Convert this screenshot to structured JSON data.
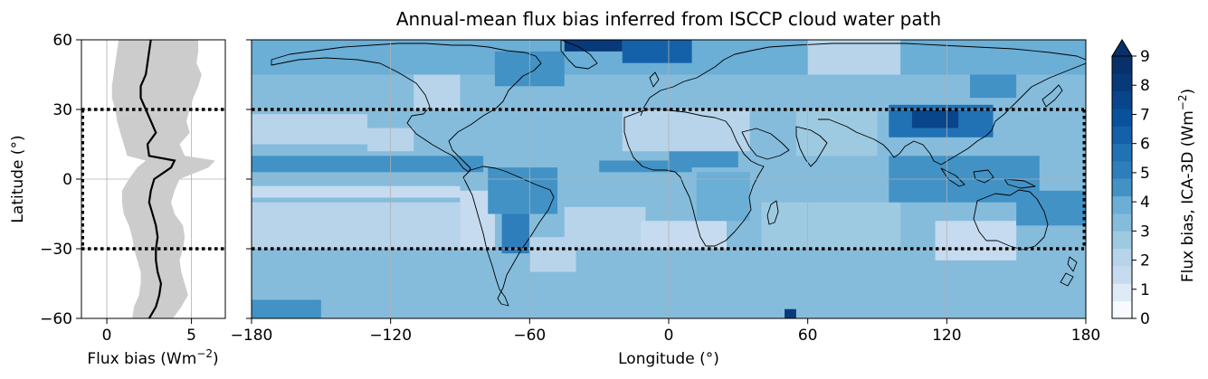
{
  "colors": {
    "profile_fill": "#cccccc",
    "profile_line": "#000000",
    "coast": "#000000",
    "grid": "#b0b0b0",
    "colormap": [
      "#f7fbff",
      "#deebf7",
      "#c6dbef",
      "#b7d4ea",
      "#9ecae1",
      "#85bcdc",
      "#6baed6",
      "#4292c6",
      "#2f7ebc",
      "#2171b5",
      "#1561a9",
      "#08519c",
      "#08458a",
      "#083a7a",
      "#08306b"
    ]
  },
  "chart_data": [
    {
      "type": "area",
      "name": "zonal-profile",
      "xlabel": "Flux bias (Wm",
      "xlabel_sup": "−2",
      "xlabel_end": ")",
      "ylabel": "Latitude (°)",
      "xlim": [
        -1.5,
        7
      ],
      "ylim": [
        -60,
        60
      ],
      "xticks": [
        0,
        5
      ],
      "xtick_labels": [
        "0",
        "5"
      ],
      "yticks": [
        -60,
        -30,
        0,
        30,
        60
      ],
      "ytick_labels": [
        "−60",
        "−30",
        "0",
        "30",
        "60"
      ],
      "grid": true,
      "latitude": [
        -60,
        -55,
        -50,
        -45,
        -40,
        -35,
        -30,
        -25,
        -20,
        -15,
        -10,
        -5,
        0,
        5,
        8,
        10,
        15,
        20,
        25,
        30,
        35,
        40,
        45,
        50,
        55,
        60
      ],
      "mean": [
        2.5,
        2.9,
        3.1,
        3.2,
        3.0,
        2.9,
        2.9,
        3.0,
        2.9,
        2.7,
        2.5,
        2.6,
        2.8,
        3.8,
        4.0,
        2.5,
        2.4,
        2.9,
        2.6,
        2.3,
        2.0,
        2.0,
        2.3,
        2.4,
        2.5,
        2.6
      ],
      "lower": [
        1.5,
        1.6,
        1.9,
        2.0,
        2.0,
        1.8,
        1.6,
        1.5,
        1.3,
        1.0,
        0.9,
        0.9,
        1.3,
        1.8,
        2.3,
        1.2,
        1.0,
        0.8,
        0.6,
        0.5,
        0.3,
        0.3,
        0.4,
        0.5,
        0.6,
        0.7
      ],
      "upper": [
        3.9,
        4.4,
        4.8,
        4.6,
        4.4,
        4.3,
        4.5,
        4.6,
        4.5,
        4.0,
        3.8,
        4.0,
        4.3,
        6.0,
        6.4,
        4.6,
        4.3,
        4.9,
        4.7,
        4.9,
        5.1,
        5.4,
        5.6,
        5.3,
        5.4,
        5.4
      ],
      "tropics_bounds": [
        -30,
        30
      ]
    },
    {
      "type": "heatmap",
      "name": "flux-bias-map",
      "title": "Annual-mean flux bias inferred from ISCCP cloud water path",
      "xlabel": "Longitude (°)",
      "xlim": [
        -180,
        180
      ],
      "ylim": [
        -60,
        60
      ],
      "xticks": [
        -180,
        -120,
        -60,
        0,
        60,
        120,
        180
      ],
      "xtick_labels": [
        "−180",
        "−120",
        "−60",
        "0",
        "60",
        "120",
        "180"
      ],
      "grid": true,
      "tropics_bounds": [
        -30,
        30
      ],
      "colorbar": {
        "label": "Flux bias, ICA-3D (Wm",
        "label_sup": "−2",
        "label_end": ")",
        "range": [
          0,
          9
        ],
        "ticks": [
          0,
          1,
          2,
          3,
          4,
          5,
          6,
          7,
          8,
          9
        ],
        "tick_labels": [
          "0",
          "1",
          "2",
          "3",
          "4",
          "5",
          "6",
          "7",
          "8",
          "9"
        ],
        "extend": "max"
      },
      "background_value": 3.0,
      "regions": [
        {
          "lon": [
            -180,
            180
          ],
          "lat": [
            -60,
            -45
          ],
          "value": 3.5
        },
        {
          "lon": [
            -180,
            180
          ],
          "lat": [
            -45,
            -30
          ],
          "value": 3.0
        },
        {
          "lon": [
            -180,
            -90
          ],
          "lat": [
            -30,
            -10
          ],
          "value": 2.2
        },
        {
          "lon": [
            -180,
            180
          ],
          "lat": [
            30,
            45
          ],
          "value": 3.5
        },
        {
          "lon": [
            -180,
            180
          ],
          "lat": [
            45,
            60
          ],
          "value": 3.6
        },
        {
          "lon": [
            -180,
            -90
          ],
          "lat": [
            -8,
            -3
          ],
          "value": 1.5
        },
        {
          "lon": [
            -180,
            -80
          ],
          "lat": [
            3,
            10
          ],
          "value": 4.6
        },
        {
          "lon": [
            -180,
            -130
          ],
          "lat": [
            15,
            28
          ],
          "value": 2.2
        },
        {
          "lon": [
            -130,
            -110
          ],
          "lat": [
            12,
            22
          ],
          "value": 2.0
        },
        {
          "lon": [
            -90,
            -75
          ],
          "lat": [
            -30,
            -5
          ],
          "value": 1.4
        },
        {
          "lon": [
            -78,
            -48
          ],
          "lat": [
            -15,
            5
          ],
          "value": 4.5
        },
        {
          "lon": [
            -72,
            -60
          ],
          "lat": [
            -32,
            -15
          ],
          "value": 5.2
        },
        {
          "lon": [
            -60,
            -40
          ],
          "lat": [
            -40,
            -25
          ],
          "value": 2.0
        },
        {
          "lon": [
            -45,
            -10
          ],
          "lat": [
            -30,
            -12
          ],
          "value": 1.8
        },
        {
          "lon": [
            -30,
            10
          ],
          "lat": [
            3,
            8
          ],
          "value": 4.3
        },
        {
          "lon": [
            0,
            30
          ],
          "lat": [
            5,
            12
          ],
          "value": 4.2
        },
        {
          "lon": [
            -20,
            35
          ],
          "lat": [
            12,
            30
          ],
          "value": 1.8
        },
        {
          "lon": [
            -12,
            25
          ],
          "lat": [
            -30,
            -18
          ],
          "value": 1.5
        },
        {
          "lon": [
            12,
            35
          ],
          "lat": [
            -18,
            3
          ],
          "value": 4.0
        },
        {
          "lon": [
            40,
            100
          ],
          "lat": [
            -30,
            -10
          ],
          "value": 2.4
        },
        {
          "lon": [
            55,
            90
          ],
          "lat": [
            10,
            30
          ],
          "value": 2.6
        },
        {
          "lon": [
            95,
            140
          ],
          "lat": [
            18,
            32
          ],
          "value": 5.8
        },
        {
          "lon": [
            105,
            125
          ],
          "lat": [
            22,
            30
          ],
          "value": 7.2
        },
        {
          "lon": [
            130,
            150
          ],
          "lat": [
            35,
            45
          ],
          "value": 4.6
        },
        {
          "lon": [
            95,
            160
          ],
          "lat": [
            -10,
            10
          ],
          "value": 4.2
        },
        {
          "lon": [
            115,
            150
          ],
          "lat": [
            -35,
            -18
          ],
          "value": 1.5
        },
        {
          "lon": [
            150,
            180
          ],
          "lat": [
            -20,
            -5
          ],
          "value": 4.2
        },
        {
          "lon": [
            -75,
            -45
          ],
          "lat": [
            40,
            55
          ],
          "value": 4.5
        },
        {
          "lon": [
            -45,
            -20
          ],
          "lat": [
            55,
            60
          ],
          "value": 7.8
        },
        {
          "lon": [
            -20,
            10
          ],
          "lat": [
            50,
            60
          ],
          "value": 6.3
        },
        {
          "lon": [
            60,
            100
          ],
          "lat": [
            45,
            60
          ],
          "value": 2.3
        },
        {
          "lon": [
            -110,
            -90
          ],
          "lat": [
            30,
            45
          ],
          "value": 2.3
        },
        {
          "lon": [
            -180,
            -150
          ],
          "lat": [
            -60,
            -52
          ],
          "value": 4.3
        },
        {
          "lon": [
            50,
            55
          ],
          "lat": [
            -60,
            -56
          ],
          "value": 8.0
        }
      ]
    }
  ]
}
